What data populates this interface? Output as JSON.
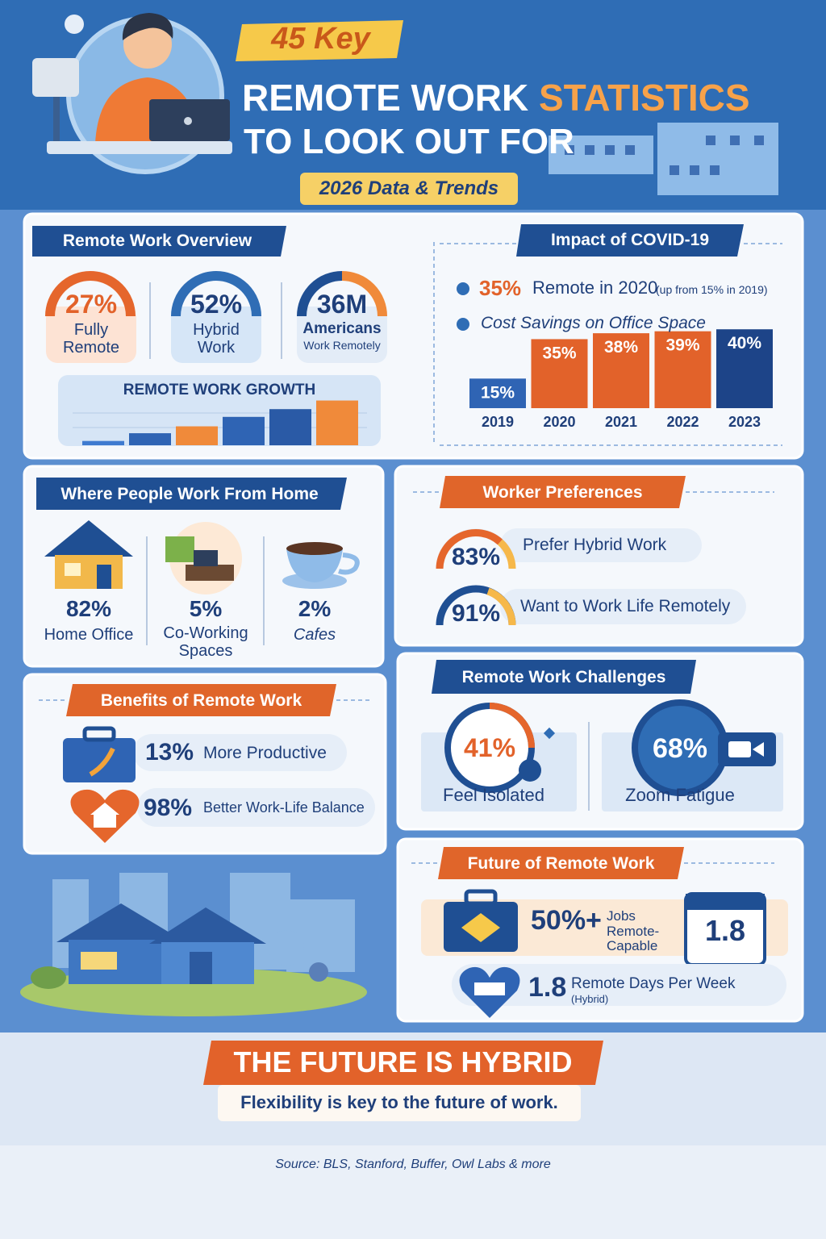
{
  "header": {
    "badge": "45 Key",
    "title_line1": "REMOTE WORK",
    "title_highlight": "STATISTICS",
    "title_line2": "TO LOOK OUT FOR",
    "subtitle": "2026 Data & Trends"
  },
  "overview": {
    "title": "Remote Work Overview",
    "stats": [
      {
        "value": "27%",
        "label": "Fully Remote"
      },
      {
        "value": "52%",
        "label": "Hybrid Work"
      },
      {
        "value": "36M",
        "label": "Americans",
        "sublabel": "Work Remotely"
      }
    ],
    "growth_chart": {
      "type": "bar",
      "title": "REMOTE WORK GROWTH",
      "values": [
        5,
        14,
        22,
        33,
        42,
        52
      ],
      "colors": [
        "#3f7bd0",
        "#2f64b4",
        "#f08a3a",
        "#2f64b4",
        "#2a5aa6",
        "#f08a3a"
      ],
      "ylim": [
        0,
        60
      ]
    }
  },
  "covid": {
    "title": "Impact of COVID-19",
    "bullets": [
      {
        "value": "35%",
        "text": "Remote in 2020",
        "note": "(up from 15% in 2019)"
      },
      {
        "text": "Cost Savings on Office Space"
      }
    ],
    "chart": {
      "type": "bar",
      "categories": [
        "2019",
        "2020",
        "2021",
        "2022",
        "2023"
      ],
      "values": [
        15,
        35,
        38,
        39,
        40
      ],
      "value_labels": [
        "15%",
        "35%",
        "38%",
        "39%",
        "40%"
      ],
      "colors": [
        "#2f64b4",
        "#e2622a",
        "#e2622a",
        "#e2622a",
        "#1d4488"
      ],
      "ylim": [
        0,
        45
      ]
    }
  },
  "work_locations": {
    "title": "Where People Work From Home",
    "items": [
      {
        "value": "82%",
        "label": "Home Office"
      },
      {
        "value": "5%",
        "label": "Co-Working Spaces"
      },
      {
        "value": "2%",
        "label": "Cafes"
      }
    ]
  },
  "preferences": {
    "title": "Worker Preferences",
    "items": [
      {
        "value": "83%",
        "label": "Prefer Hybrid Work"
      },
      {
        "value": "91%",
        "label": "Want to Work Life Remotely"
      }
    ]
  },
  "benefits": {
    "title": "Benefits of Remote Work",
    "items": [
      {
        "value": "13%",
        "label": "More Productive"
      },
      {
        "value": "98%",
        "label": "Better Work-Life Balance"
      }
    ]
  },
  "challenges": {
    "title": "Remote Work Challenges",
    "items": [
      {
        "value": "41%",
        "label": "Feel Isolated"
      },
      {
        "value": "68%",
        "label": "Zoom Fatigue"
      }
    ]
  },
  "future": {
    "title": "Future of Remote Work",
    "items": [
      {
        "value": "50%+",
        "label": "Jobs Remote-Capable"
      },
      {
        "value": "1.8",
        "label": "Remote Days Per Week",
        "note": "(Hybrid)"
      }
    ],
    "calendar": "1.8"
  },
  "footer": {
    "banner": "THE FUTURE IS HYBRID",
    "tagline": "Flexibility is key to the future of work.",
    "source": "Source: BLS, Stanford, Buffer, Owl Labs & more"
  }
}
